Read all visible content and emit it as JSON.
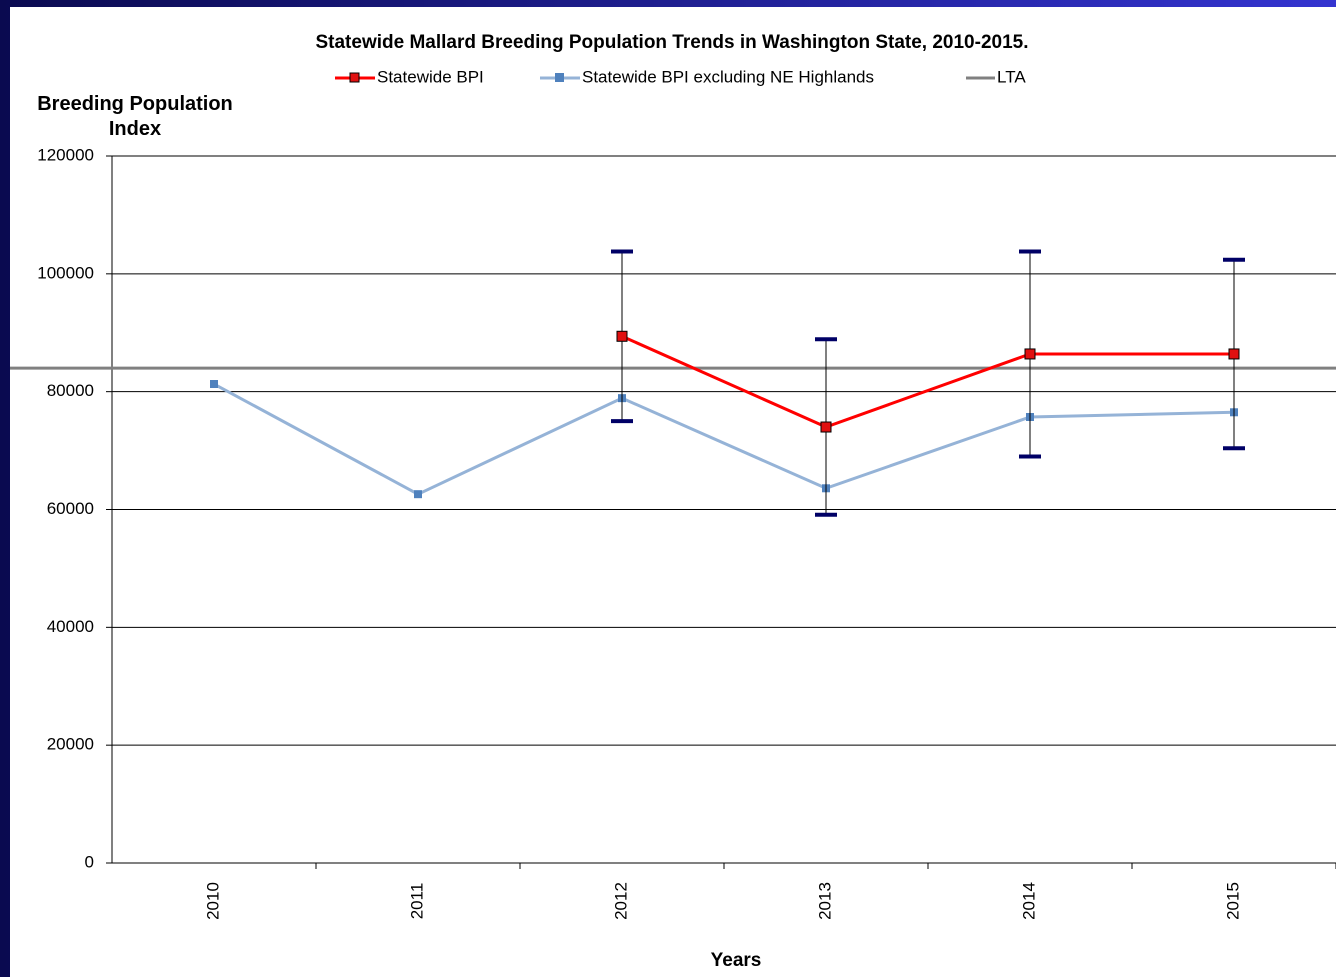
{
  "chart_data": {
    "type": "line",
    "title": "Statewide Mallard Breeding Population Trends in Washington State, 2010-2015.",
    "y_label": "Breeding Population Index",
    "x_label": "Years",
    "categories": [
      "2010",
      "2011",
      "2012",
      "2013",
      "2014",
      "2015"
    ],
    "series": [
      {
        "name": "Statewide BPI",
        "color": "#ff0000",
        "marker_color": "#e01010",
        "values": [
          null,
          null,
          89400,
          74000,
          86400,
          86400
        ],
        "errors": [
          null,
          null,
          14400,
          14900,
          17400,
          16000
        ]
      },
      {
        "name": "Statewide BPI excluding NE Highlands",
        "color": "#95b3d7",
        "marker_color": "#4f81bd",
        "values": [
          81300,
          62600,
          78900,
          63600,
          75700,
          76500
        ]
      }
    ],
    "reference_line": {
      "name": "LTA",
      "value": 84000,
      "color": "#808080"
    },
    "ylim": [
      0,
      120000
    ],
    "yticks": [
      0,
      20000,
      40000,
      60000,
      80000,
      100000,
      120000
    ],
    "grid": true
  }
}
